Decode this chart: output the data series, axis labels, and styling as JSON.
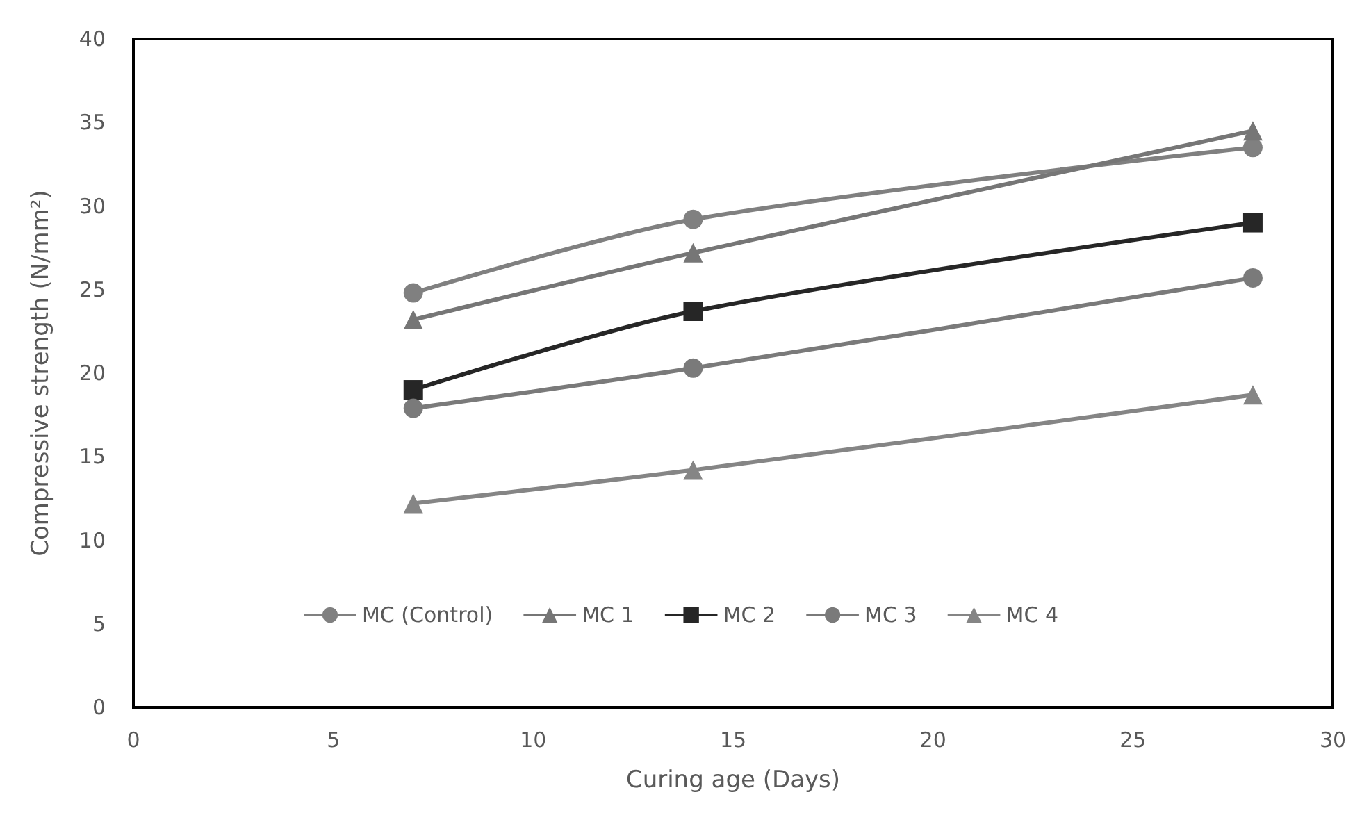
{
  "chart_data": {
    "type": "line",
    "xlabel": "Curing age (Days)",
    "ylabel": "Compressive strength (N/mm²)",
    "x": [
      7,
      14,
      28
    ],
    "xlim": [
      0,
      30
    ],
    "xticks": [
      0,
      5,
      10,
      15,
      20,
      25,
      30
    ],
    "ylim": [
      0,
      40
    ],
    "yticks": [
      0,
      5,
      10,
      15,
      20,
      25,
      30,
      35,
      40
    ],
    "grid": false,
    "legend": "bottom",
    "line_style": "solid",
    "series": [
      {
        "name": "MC (Control)",
        "color": "#808080",
        "marker": "circle",
        "values": [
          24.8,
          29.2,
          33.5
        ]
      },
      {
        "name": "MC 1",
        "color": "#767676",
        "marker": "triangle",
        "values": [
          23.2,
          27.2,
          34.5
        ]
      },
      {
        "name": "MC 2",
        "color": "#262626",
        "marker": "square",
        "values": [
          19.0,
          23.7,
          29.0
        ]
      },
      {
        "name": "MC 3",
        "color": "#7a7a7a",
        "marker": "circle",
        "values": [
          17.9,
          20.3,
          25.7
        ]
      },
      {
        "name": "MC 4",
        "color": "#858585",
        "marker": "triangle",
        "values": [
          12.2,
          14.2,
          18.7
        ]
      }
    ]
  }
}
